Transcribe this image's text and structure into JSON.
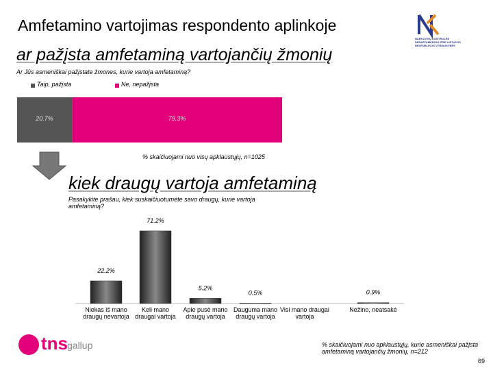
{
  "slide": {
    "title": "Amfetamino vartojimas respondento aplinkoje",
    "logo_text": "NARKOTIKŲ KONTROLĖS DEPARTAMENTAS PRIE LIETUVOS RESPUBLIKOS VYRIAUSYBĖS",
    "brand": "tns",
    "brand_sub": "gallup",
    "page_number": "69"
  },
  "chart_data": [
    {
      "type": "stacked_bar",
      "title": "ar pažįsta amfetaminą vartojančių žmonių",
      "subtitle": "Ar Jūs asmeniškai pažįstate žmones, kurie vartoja amfetaminą?",
      "series": [
        {
          "name": "Taip, pažįsta",
          "color": "#555555",
          "values": [
            20.7
          ],
          "value_labels": [
            "20.7%"
          ]
        },
        {
          "name": "Ne, nepažįsta",
          "color": "#e2007a",
          "values": [
            79.3
          ],
          "value_labels": [
            "79.3%"
          ]
        }
      ],
      "note": "% skaičiuojami nuo visų apklaustųjų, n=1025"
    },
    {
      "type": "bar",
      "title": "kiek draugų vartoja amfetaminą",
      "subtitle": "Pasakykite prašau, kiek suskaičiuotumėte savo draugų, kurie vartoja amfetaminą?",
      "categories": [
        "Niekas iš mano draugų nevartoja",
        "Keli mano draugai vartoja",
        "Apie pusė mano draugų vartoja",
        "Dauguma mano draugų vartoja",
        "Visi mano draugai vartoja",
        "Nežino, neatsakė"
      ],
      "values": [
        22.2,
        71.2,
        5.2,
        0.5,
        0,
        0.9
      ],
      "value_labels": [
        "22.2%",
        "71.2%",
        "5.2%",
        "0.5%",
        null,
        "0.9%"
      ],
      "color": "#444444",
      "note": "% skaičiuojami nuo apklaustųjų, kurie asmeniškai pažįsta amfetaminą vartojančių žmonių, n=212"
    }
  ]
}
